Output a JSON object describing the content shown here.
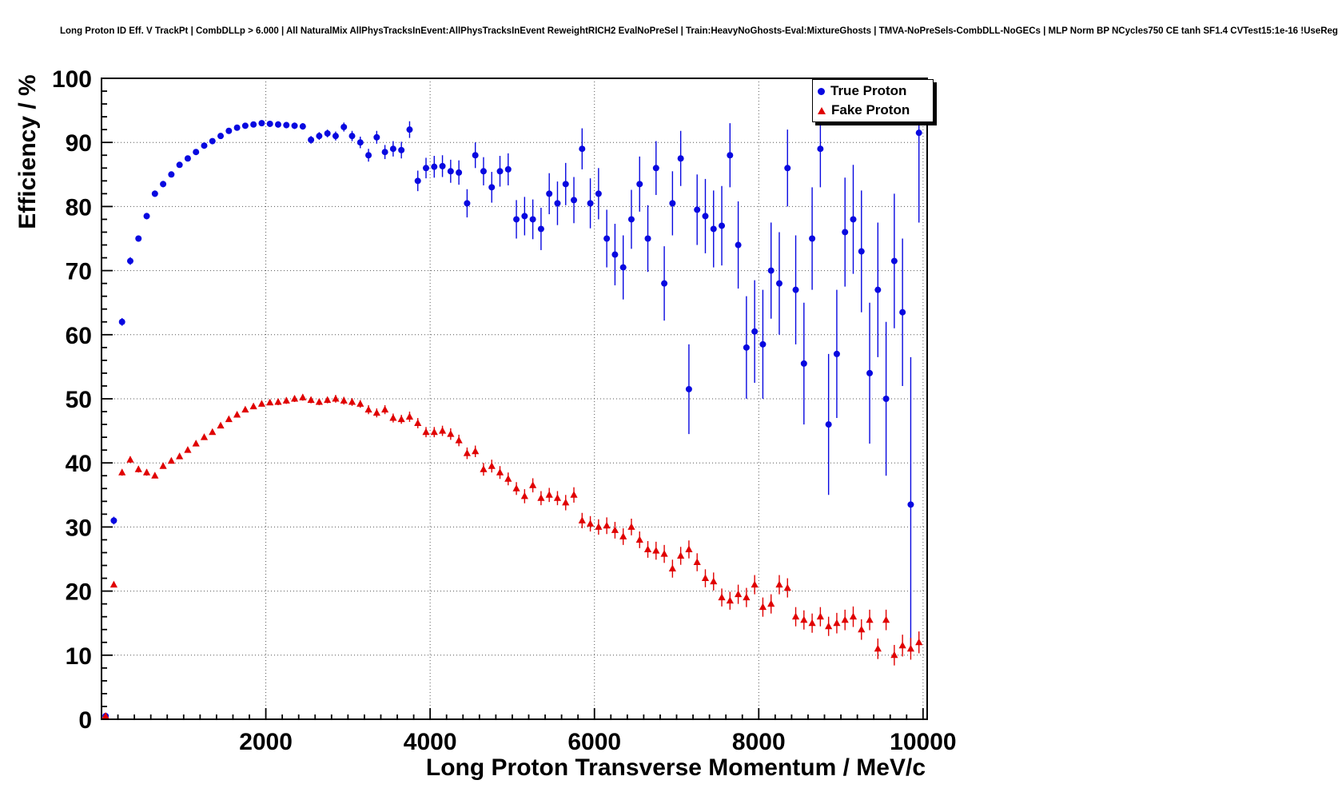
{
  "title": "Long Proton ID Eff. V TrackPt | CombDLLp > 6.000 | All NaturalMix AllPhysTracksInEvent:AllPhysTracksInEvent ReweightRICH2 EvalNoPreSel | Train:HeavyNoGhosts-Eval:MixtureGhosts | TMVA-NoPreSels-CombDLL-NoGECs | MLP Norm BP NCycles750 CE tanh SF1.4 CVTest15:1e-16 !UseReg",
  "legend": {
    "items": [
      {
        "label": "True Proton",
        "marker": "circle",
        "color": "#0808e0"
      },
      {
        "label": "Fake Proton",
        "marker": "triangle",
        "color": "#e00000"
      }
    ]
  },
  "chart_data": {
    "type": "scatter",
    "title": "Long Proton ID Eff. V TrackPt | CombDLLp > 6.000 | All NaturalMix AllPhysTracksInEvent:AllPhysTracksInEvent ReweightRICH2 EvalNoPreSel | Train:HeavyNoGhosts-Eval:MixtureGhosts | TMVA-NoPreSels-CombDLL-NoGECs | MLP Norm BP NCycles750 CE tanh SF1.4 CVTest15:1e-16 !UseReg",
    "xlabel": "Long Proton Transverse Momentum / MeV/c",
    "ylabel": "Efficiency / %",
    "xlim": [
      0,
      10050
    ],
    "ylim": [
      0,
      100
    ],
    "xticks": [
      2000,
      4000,
      6000,
      8000,
      10000
    ],
    "yticks": [
      0,
      10,
      20,
      30,
      40,
      50,
      60,
      70,
      80,
      90,
      100
    ],
    "grid": true,
    "legend_position": "top-right",
    "series": [
      {
        "name": "True Proton",
        "marker": "circle",
        "color": "#0808e0",
        "points": [
          [
            50,
            0.5,
            0.3
          ],
          [
            150,
            31,
            0.6
          ],
          [
            250,
            62,
            0.6
          ],
          [
            350,
            71.5,
            0.6
          ],
          [
            450,
            75,
            0.5
          ],
          [
            550,
            78.5,
            0.5
          ],
          [
            650,
            82,
            0.5
          ],
          [
            750,
            83.5,
            0.5
          ],
          [
            850,
            85,
            0.4
          ],
          [
            950,
            86.5,
            0.4
          ],
          [
            1050,
            87.5,
            0.4
          ],
          [
            1150,
            88.5,
            0.4
          ],
          [
            1250,
            89.5,
            0.4
          ],
          [
            1350,
            90.2,
            0.4
          ],
          [
            1450,
            91,
            0.4
          ],
          [
            1550,
            91.8,
            0.4
          ],
          [
            1650,
            92.3,
            0.4
          ],
          [
            1750,
            92.6,
            0.4
          ],
          [
            1850,
            92.8,
            0.4
          ],
          [
            1950,
            93,
            0.4
          ],
          [
            2050,
            92.9,
            0.4
          ],
          [
            2150,
            92.8,
            0.5
          ],
          [
            2250,
            92.7,
            0.5
          ],
          [
            2350,
            92.6,
            0.5
          ],
          [
            2450,
            92.5,
            0.5
          ],
          [
            2550,
            90.4,
            0.6
          ],
          [
            2650,
            91,
            0.6
          ],
          [
            2750,
            91.4,
            0.6
          ],
          [
            2850,
            91,
            0.7
          ],
          [
            2950,
            92.4,
            0.7
          ],
          [
            3050,
            91,
            0.8
          ],
          [
            3150,
            90,
            0.9
          ],
          [
            3250,
            88,
            1
          ],
          [
            3350,
            90.8,
            1
          ],
          [
            3450,
            88.5,
            1.1
          ],
          [
            3550,
            89,
            1.2
          ],
          [
            3650,
            88.8,
            1.3
          ],
          [
            3750,
            92,
            1.3
          ],
          [
            3850,
            84,
            1.6
          ],
          [
            3950,
            86,
            1.6
          ],
          [
            4050,
            86.2,
            1.7
          ],
          [
            4150,
            86.3,
            1.7
          ],
          [
            4250,
            85.5,
            1.8
          ],
          [
            4350,
            85.3,
            1.9
          ],
          [
            4450,
            80.5,
            2.2
          ],
          [
            4550,
            88,
            2
          ],
          [
            4650,
            85.5,
            2.2
          ],
          [
            4750,
            83,
            2.4
          ],
          [
            4850,
            85.5,
            2.4
          ],
          [
            4950,
            85.8,
            2.5
          ],
          [
            5050,
            78,
            3
          ],
          [
            5150,
            78.5,
            3
          ],
          [
            5250,
            78,
            3.1
          ],
          [
            5350,
            76.5,
            3.3
          ],
          [
            5450,
            82,
            3.2
          ],
          [
            5550,
            80.5,
            3.4
          ],
          [
            5650,
            83.5,
            3.3
          ],
          [
            5750,
            81,
            3.6
          ],
          [
            5850,
            89,
            3.2
          ],
          [
            5950,
            80.5,
            3.9
          ],
          [
            6050,
            82,
            4
          ],
          [
            6150,
            75,
            4.5
          ],
          [
            6250,
            72.5,
            4.8
          ],
          [
            6350,
            70.5,
            5
          ],
          [
            6450,
            78,
            4.6
          ],
          [
            6550,
            83.5,
            4.3
          ],
          [
            6650,
            75,
            5.2
          ],
          [
            6750,
            86,
            4.2
          ],
          [
            6850,
            68,
            5.8
          ],
          [
            6950,
            80.5,
            5
          ],
          [
            7050,
            87.5,
            4.3
          ],
          [
            7150,
            51.5,
            7
          ],
          [
            7250,
            79.5,
            5.5
          ],
          [
            7350,
            78.5,
            5.8
          ],
          [
            7450,
            76.5,
            6
          ],
          [
            7550,
            77,
            6.2
          ],
          [
            7650,
            88,
            5
          ],
          [
            7750,
            74,
            6.8
          ],
          [
            7850,
            58,
            8
          ],
          [
            7950,
            60.5,
            8
          ],
          [
            8050,
            58.5,
            8.5
          ],
          [
            8150,
            70,
            7.5
          ],
          [
            8250,
            68,
            8
          ],
          [
            8350,
            86,
            6
          ],
          [
            8450,
            67,
            8.5
          ],
          [
            8550,
            55.5,
            9.5
          ],
          [
            8650,
            75,
            8
          ],
          [
            8750,
            89,
            6
          ],
          [
            8850,
            46,
            11
          ],
          [
            8950,
            57,
            10
          ],
          [
            9050,
            76,
            8.5
          ],
          [
            9150,
            78,
            8.5
          ],
          [
            9250,
            73,
            9.5
          ],
          [
            9350,
            54,
            11
          ],
          [
            9450,
            67,
            10.5
          ],
          [
            9550,
            50,
            12
          ],
          [
            9650,
            71.5,
            10.5
          ],
          [
            9750,
            63.5,
            11.5
          ],
          [
            9850,
            33.5,
            23
          ],
          [
            9950,
            91.5,
            14
          ]
        ]
      },
      {
        "name": "Fake Proton",
        "marker": "triangle",
        "color": "#e00000",
        "points": [
          [
            50,
            0.5,
            0.3
          ],
          [
            150,
            21,
            0.4
          ],
          [
            250,
            38.5,
            0.5
          ],
          [
            350,
            40.5,
            0.5
          ],
          [
            450,
            39,
            0.5
          ],
          [
            550,
            38.5,
            0.5
          ],
          [
            650,
            38,
            0.4
          ],
          [
            750,
            39.5,
            0.4
          ],
          [
            850,
            40.3,
            0.4
          ],
          [
            950,
            41,
            0.4
          ],
          [
            1050,
            42,
            0.4
          ],
          [
            1150,
            43,
            0.4
          ],
          [
            1250,
            44,
            0.4
          ],
          [
            1350,
            44.8,
            0.4
          ],
          [
            1450,
            45.8,
            0.4
          ],
          [
            1550,
            46.8,
            0.4
          ],
          [
            1650,
            47.5,
            0.4
          ],
          [
            1750,
            48.3,
            0.4
          ],
          [
            1850,
            48.8,
            0.4
          ],
          [
            1950,
            49.2,
            0.4
          ],
          [
            2050,
            49.4,
            0.4
          ],
          [
            2150,
            49.5,
            0.5
          ],
          [
            2250,
            49.7,
            0.5
          ],
          [
            2350,
            50,
            0.5
          ],
          [
            2450,
            50.2,
            0.5
          ],
          [
            2550,
            49.8,
            0.5
          ],
          [
            2650,
            49.5,
            0.5
          ],
          [
            2750,
            49.8,
            0.5
          ],
          [
            2850,
            50,
            0.6
          ],
          [
            2950,
            49.7,
            0.6
          ],
          [
            3050,
            49.5,
            0.6
          ],
          [
            3150,
            49.2,
            0.6
          ],
          [
            3250,
            48.3,
            0.7
          ],
          [
            3350,
            47.8,
            0.7
          ],
          [
            3450,
            48.3,
            0.7
          ],
          [
            3550,
            47,
            0.7
          ],
          [
            3650,
            46.8,
            0.7
          ],
          [
            3750,
            47.2,
            0.8
          ],
          [
            3850,
            46.2,
            0.8
          ],
          [
            3950,
            44.8,
            0.8
          ],
          [
            4050,
            44.8,
            0.8
          ],
          [
            4150,
            45,
            0.8
          ],
          [
            4250,
            44.5,
            0.9
          ],
          [
            4350,
            43.5,
            0.9
          ],
          [
            4450,
            41.5,
            0.9
          ],
          [
            4550,
            41.8,
            0.9
          ],
          [
            4650,
            39,
            1
          ],
          [
            4750,
            39.5,
            1
          ],
          [
            4850,
            38.5,
            1
          ],
          [
            4950,
            37.5,
            1
          ],
          [
            5050,
            36,
            1
          ],
          [
            5150,
            34.8,
            1.1
          ],
          [
            5250,
            36.5,
            1.1
          ],
          [
            5350,
            34.5,
            1.1
          ],
          [
            5450,
            35,
            1.1
          ],
          [
            5550,
            34.5,
            1.1
          ],
          [
            5650,
            33.8,
            1.2
          ],
          [
            5750,
            35,
            1.2
          ],
          [
            5850,
            31,
            1.2
          ],
          [
            5950,
            30.5,
            1.2
          ],
          [
            6050,
            30,
            1.2
          ],
          [
            6150,
            30.2,
            1.3
          ],
          [
            6250,
            29.5,
            1.3
          ],
          [
            6350,
            28.5,
            1.3
          ],
          [
            6450,
            30,
            1.3
          ],
          [
            6550,
            28,
            1.3
          ],
          [
            6650,
            26.5,
            1.3
          ],
          [
            6750,
            26.3,
            1.4
          ],
          [
            6850,
            25.8,
            1.4
          ],
          [
            6950,
            23.5,
            1.4
          ],
          [
            7050,
            25.5,
            1.4
          ],
          [
            7150,
            26.5,
            1.4
          ],
          [
            7250,
            24.5,
            1.4
          ],
          [
            7350,
            22,
            1.4
          ],
          [
            7450,
            21.5,
            1.4
          ],
          [
            7550,
            19,
            1.4
          ],
          [
            7650,
            18.5,
            1.4
          ],
          [
            7750,
            19.5,
            1.5
          ],
          [
            7850,
            19,
            1.5
          ],
          [
            7950,
            21,
            1.5
          ],
          [
            8050,
            17.5,
            1.5
          ],
          [
            8150,
            18,
            1.5
          ],
          [
            8250,
            21,
            1.5
          ],
          [
            8350,
            20.5,
            1.5
          ],
          [
            8450,
            16,
            1.5
          ],
          [
            8550,
            15.5,
            1.5
          ],
          [
            8650,
            15,
            1.5
          ],
          [
            8750,
            16,
            1.5
          ],
          [
            8850,
            14.5,
            1.5
          ],
          [
            8950,
            15,
            1.6
          ],
          [
            9050,
            15.5,
            1.6
          ],
          [
            9150,
            16,
            1.6
          ],
          [
            9250,
            14,
            1.6
          ],
          [
            9350,
            15.5,
            1.6
          ],
          [
            9450,
            11,
            1.6
          ],
          [
            9550,
            15.5,
            1.6
          ],
          [
            9650,
            10,
            1.6
          ],
          [
            9750,
            11.5,
            1.7
          ],
          [
            9850,
            11,
            1.7
          ],
          [
            9950,
            12,
            1.7
          ]
        ]
      }
    ]
  }
}
